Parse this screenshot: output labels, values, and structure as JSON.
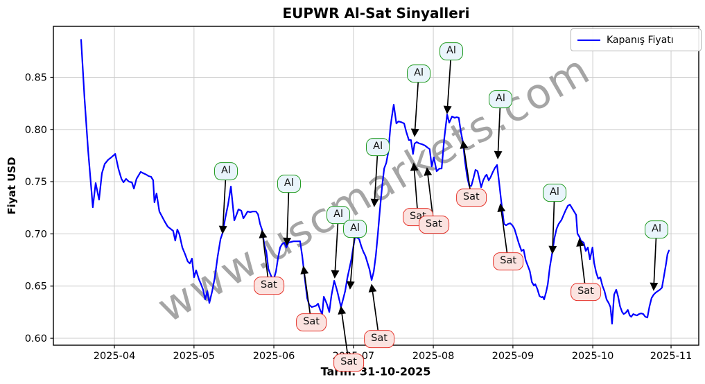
{
  "title": "EUPWR Al-Sat Sinyalleri",
  "watermark": "www.uscmarkets.com",
  "legend": {
    "label": "Kapanış Fiyatı"
  },
  "axes": {
    "x_label": "Tarih: 31-10-2025",
    "y_label": "Fiyat USD",
    "x_ticks": [
      {
        "label": "2025-04",
        "t": 12.8
      },
      {
        "label": "2025-05",
        "t": 43.4
      },
      {
        "label": "2025-06",
        "t": 74.1
      },
      {
        "label": "2025-07",
        "t": 104.7
      },
      {
        "label": "2025-08",
        "t": 135.4
      },
      {
        "label": "2025-09",
        "t": 166.0
      },
      {
        "label": "2025-10",
        "t": 196.7
      },
      {
        "label": "2025-11",
        "t": 226.8
      }
    ],
    "y_ticks": [
      {
        "label": "0.60",
        "v": 0.6
      },
      {
        "label": "0.65",
        "v": 0.65
      },
      {
        "label": "0.70",
        "v": 0.7
      },
      {
        "label": "0.75",
        "v": 0.75
      },
      {
        "label": "0.80",
        "v": 0.8
      },
      {
        "label": "0.85",
        "v": 0.85
      }
    ]
  },
  "colors": {
    "line": "#0000ff",
    "grid": "#cccccc",
    "spine": "#000000",
    "arrow": "#000000",
    "buy_border": "#1f9a1f",
    "buy_fill": "#e9f4fb",
    "sell_border": "#e5332a",
    "sell_fill": "#fbe3e0",
    "watermark": "#8c8c8c"
  },
  "chart_data": {
    "type": "line",
    "title": "EUPWR Al-Sat Sinyalleri",
    "xlabel": "Tarih: 31-10-2025",
    "ylabel": "Fiyat USD",
    "series_name": "Kapanış Fiyatı",
    "x_unit": "days since 2025-03-19",
    "start_date": "2025-03-19",
    "end_date": "2025-10-31",
    "xlim_days": [
      -10.66,
      237.45
    ],
    "ylim": [
      0.5934,
      0.8988
    ],
    "grid": true,
    "legend_position": "upper right",
    "points": [
      [
        0,
        0.886
      ],
      [
        1.3,
        0.83
      ],
      [
        2.7,
        0.78
      ],
      [
        4.5,
        0.7255
      ],
      [
        5.6,
        0.7487
      ],
      [
        6.9,
        0.7328
      ],
      [
        8,
        0.758
      ],
      [
        9.1,
        0.767
      ],
      [
        10.4,
        0.771
      ],
      [
        11.7,
        0.7735
      ],
      [
        13.1,
        0.7766
      ],
      [
        14.4,
        0.762
      ],
      [
        15.5,
        0.7527
      ],
      [
        16.3,
        0.7494
      ],
      [
        17.3,
        0.7527
      ],
      [
        18.4,
        0.75
      ],
      [
        19.5,
        0.7494
      ],
      [
        20.3,
        0.7434
      ],
      [
        21.3,
        0.7527
      ],
      [
        22.1,
        0.756
      ],
      [
        22.9,
        0.7594
      ],
      [
        24,
        0.758
      ],
      [
        25.1,
        0.7567
      ],
      [
        25.9,
        0.7554
      ],
      [
        26.9,
        0.7547
      ],
      [
        27.7,
        0.7514
      ],
      [
        28.2,
        0.7302
      ],
      [
        29,
        0.7387
      ],
      [
        30.1,
        0.7215
      ],
      [
        31.2,
        0.7162
      ],
      [
        32.2,
        0.7116
      ],
      [
        33.3,
        0.7069
      ],
      [
        34.4,
        0.7049
      ],
      [
        35.4,
        0.7029
      ],
      [
        36.2,
        0.6936
      ],
      [
        37,
        0.7042
      ],
      [
        37.8,
        0.6996
      ],
      [
        38.9,
        0.687
      ],
      [
        40,
        0.6804
      ],
      [
        41,
        0.6737
      ],
      [
        41.8,
        0.6717
      ],
      [
        42.6,
        0.6764
      ],
      [
        43.4,
        0.6584
      ],
      [
        44.2,
        0.6651
      ],
      [
        45.3,
        0.6564
      ],
      [
        46.1,
        0.6518
      ],
      [
        46.9,
        0.6465
      ],
      [
        47.7,
        0.6372
      ],
      [
        48.5,
        0.6452
      ],
      [
        49.3,
        0.6339
      ],
      [
        50.4,
        0.6452
      ],
      [
        51.4,
        0.6584
      ],
      [
        52.5,
        0.6784
      ],
      [
        53.6,
        0.695
      ],
      [
        54.4,
        0.7009
      ],
      [
        55.4,
        0.7149
      ],
      [
        56.5,
        0.7281
      ],
      [
        57.6,
        0.7454
      ],
      [
        58.9,
        0.7129
      ],
      [
        59.7,
        0.718
      ],
      [
        60.5,
        0.7235
      ],
      [
        61.6,
        0.7222
      ],
      [
        62.4,
        0.7149
      ],
      [
        63.2,
        0.718
      ],
      [
        64,
        0.7215
      ],
      [
        65,
        0.7208
      ],
      [
        66.1,
        0.7215
      ],
      [
        67.2,
        0.7215
      ],
      [
        68,
        0.7188
      ],
      [
        68.8,
        0.7095
      ],
      [
        69.6,
        0.7036
      ],
      [
        70.4,
        0.69
      ],
      [
        71.2,
        0.683
      ],
      [
        72,
        0.6664
      ],
      [
        72.7,
        0.6617
      ],
      [
        73.3,
        0.6584
      ],
      [
        74.1,
        0.657
      ],
      [
        74.9,
        0.664
      ],
      [
        75.7,
        0.677
      ],
      [
        76.5,
        0.687
      ],
      [
        77.3,
        0.6903
      ],
      [
        78.1,
        0.6916
      ],
      [
        78.9,
        0.6869
      ],
      [
        79.7,
        0.6916
      ],
      [
        80.7,
        0.6923
      ],
      [
        81.8,
        0.6929
      ],
      [
        82.9,
        0.6929
      ],
      [
        84.2,
        0.693
      ],
      [
        85,
        0.6787
      ],
      [
        86.1,
        0.6551
      ],
      [
        86.9,
        0.6385
      ],
      [
        87.7,
        0.632
      ],
      [
        88.7,
        0.6299
      ],
      [
        89.5,
        0.6305
      ],
      [
        90.3,
        0.6312
      ],
      [
        91.1,
        0.6332
      ],
      [
        91.9,
        0.6272
      ],
      [
        92.7,
        0.6232
      ],
      [
        93.3,
        0.6398
      ],
      [
        94.1,
        0.6352
      ],
      [
        94.6,
        0.6319
      ],
      [
        95.4,
        0.6252
      ],
      [
        96.2,
        0.6405
      ],
      [
        97.3,
        0.6551
      ],
      [
        98.1,
        0.6485
      ],
      [
        98.6,
        0.6438
      ],
      [
        99.4,
        0.6352
      ],
      [
        99.9,
        0.6299
      ],
      [
        100.7,
        0.6373
      ],
      [
        101.5,
        0.6452
      ],
      [
        102.3,
        0.6572
      ],
      [
        103.1,
        0.6664
      ],
      [
        103.9,
        0.6757
      ],
      [
        104.7,
        0.6883
      ],
      [
        105.3,
        0.6969
      ],
      [
        106.1,
        0.6963
      ],
      [
        106.9,
        0.695
      ],
      [
        107.7,
        0.6883
      ],
      [
        108.5,
        0.683
      ],
      [
        109.3,
        0.679
      ],
      [
        110.1,
        0.6724
      ],
      [
        110.9,
        0.6658
      ],
      [
        111.7,
        0.6558
      ],
      [
        112.5,
        0.6638
      ],
      [
        113.3,
        0.679
      ],
      [
        114.1,
        0.7
      ],
      [
        114.9,
        0.7235
      ],
      [
        115.7,
        0.7447
      ],
      [
        116.5,
        0.7627
      ],
      [
        117.3,
        0.768
      ],
      [
        118.1,
        0.7786
      ],
      [
        118.9,
        0.8025
      ],
      [
        119.7,
        0.8164
      ],
      [
        120.2,
        0.8237
      ],
      [
        121.2,
        0.8058
      ],
      [
        122,
        0.8078
      ],
      [
        123.1,
        0.807
      ],
      [
        124.2,
        0.8058
      ],
      [
        125,
        0.7979
      ],
      [
        126,
        0.7899
      ],
      [
        126.8,
        0.7899
      ],
      [
        127.6,
        0.7766
      ],
      [
        128.2,
        0.7865
      ],
      [
        129,
        0.7879
      ],
      [
        130,
        0.7866
      ],
      [
        131.1,
        0.7859
      ],
      [
        132.2,
        0.7846
      ],
      [
        133.2,
        0.7826
      ],
      [
        134,
        0.7812
      ],
      [
        134.8,
        0.7646
      ],
      [
        135.6,
        0.7733
      ],
      [
        136.7,
        0.76
      ],
      [
        137.8,
        0.7626
      ],
      [
        138.6,
        0.7626
      ],
      [
        139.6,
        0.791
      ],
      [
        140.7,
        0.8144
      ],
      [
        141.5,
        0.8065
      ],
      [
        142.6,
        0.8125
      ],
      [
        143.6,
        0.8112
      ],
      [
        144.4,
        0.8118
      ],
      [
        145.2,
        0.8112
      ],
      [
        146,
        0.7979
      ],
      [
        146.8,
        0.7879
      ],
      [
        147.6,
        0.7693
      ],
      [
        148.4,
        0.7547
      ],
      [
        149.2,
        0.746
      ],
      [
        150,
        0.746
      ],
      [
        150.8,
        0.7533
      ],
      [
        151.6,
        0.7613
      ],
      [
        152.4,
        0.7601
      ],
      [
        153.2,
        0.7513
      ],
      [
        153.8,
        0.7447
      ],
      [
        154.6,
        0.7513
      ],
      [
        155.4,
        0.7554
      ],
      [
        155.9,
        0.7567
      ],
      [
        156.7,
        0.7513
      ],
      [
        157.5,
        0.7547
      ],
      [
        158.3,
        0.7593
      ],
      [
        159.1,
        0.7633
      ],
      [
        159.9,
        0.766
      ],
      [
        160.7,
        0.7494
      ],
      [
        161.5,
        0.7315
      ],
      [
        162.6,
        0.7095
      ],
      [
        163.4,
        0.7082
      ],
      [
        164.2,
        0.7095
      ],
      [
        165,
        0.7102
      ],
      [
        165.8,
        0.7082
      ],
      [
        166.6,
        0.7049
      ],
      [
        167.4,
        0.6983
      ],
      [
        168.2,
        0.6916
      ],
      [
        169.3,
        0.6837
      ],
      [
        170.1,
        0.685
      ],
      [
        170.9,
        0.675
      ],
      [
        171.7,
        0.6697
      ],
      [
        172.5,
        0.6644
      ],
      [
        173.3,
        0.6538
      ],
      [
        174.1,
        0.6505
      ],
      [
        174.6,
        0.6518
      ],
      [
        175.4,
        0.6472
      ],
      [
        176.2,
        0.6405
      ],
      [
        177,
        0.6392
      ],
      [
        177.5,
        0.6398
      ],
      [
        178,
        0.6372
      ],
      [
        178.8,
        0.6445
      ],
      [
        179.4,
        0.6518
      ],
      [
        180.2,
        0.6684
      ],
      [
        181.2,
        0.683
      ],
      [
        182,
        0.6963
      ],
      [
        182.8,
        0.7049
      ],
      [
        183.6,
        0.7095
      ],
      [
        184.7,
        0.7135
      ],
      [
        185.5,
        0.7182
      ],
      [
        186.3,
        0.7228
      ],
      [
        187.1,
        0.7268
      ],
      [
        187.9,
        0.7281
      ],
      [
        188.7,
        0.7248
      ],
      [
        189.5,
        0.7215
      ],
      [
        190.3,
        0.7182
      ],
      [
        190.8,
        0.7003
      ],
      [
        191.6,
        0.697
      ],
      [
        192.1,
        0.6936
      ],
      [
        193.2,
        0.6916
      ],
      [
        194,
        0.6837
      ],
      [
        194.8,
        0.687
      ],
      [
        195.6,
        0.6757
      ],
      [
        196.6,
        0.687
      ],
      [
        197.2,
        0.6724
      ],
      [
        198,
        0.6631
      ],
      [
        198.8,
        0.6571
      ],
      [
        199.6,
        0.6584
      ],
      [
        200.4,
        0.6505
      ],
      [
        201.2,
        0.6452
      ],
      [
        202,
        0.6372
      ],
      [
        202.8,
        0.6339
      ],
      [
        203.5,
        0.6299
      ],
      [
        204.1,
        0.614
      ],
      [
        204.9,
        0.6418
      ],
      [
        205.7,
        0.6465
      ],
      [
        206.4,
        0.6405
      ],
      [
        207.2,
        0.6305
      ],
      [
        208,
        0.6252
      ],
      [
        208.6,
        0.6232
      ],
      [
        209.4,
        0.6245
      ],
      [
        210.2,
        0.6272
      ],
      [
        210.9,
        0.6219
      ],
      [
        211.5,
        0.6206
      ],
      [
        212.3,
        0.6232
      ],
      [
        212.9,
        0.6225
      ],
      [
        213.7,
        0.6219
      ],
      [
        214.5,
        0.6232
      ],
      [
        215.3,
        0.6239
      ],
      [
        216.1,
        0.6232
      ],
      [
        216.9,
        0.6206
      ],
      [
        217.7,
        0.6199
      ],
      [
        218.5,
        0.6305
      ],
      [
        219.3,
        0.6385
      ],
      [
        220.1,
        0.6418
      ],
      [
        220.9,
        0.6438
      ],
      [
        221.7,
        0.6452
      ],
      [
        222.5,
        0.6465
      ],
      [
        223.3,
        0.6485
      ],
      [
        224.1,
        0.66
      ],
      [
        224.9,
        0.6717
      ],
      [
        225.4,
        0.6804
      ],
      [
        226,
        0.684
      ]
    ],
    "signals": [
      {
        "type": "buy",
        "label": "Al",
        "t": 55.7,
        "price": 0.76,
        "tip_t": 54.4,
        "tip_price": 0.7009
      },
      {
        "type": "buy",
        "label": "Al",
        "t": 79.9,
        "price": 0.748,
        "tip_t": 79.1,
        "tip_price": 0.6896
      },
      {
        "type": "buy",
        "label": "Al",
        "t": 98.9,
        "price": 0.7182,
        "tip_t": 97.5,
        "tip_price": 0.6584
      },
      {
        "type": "buy",
        "label": "Al",
        "t": 105.3,
        "price": 0.7049,
        "tip_t": 103.4,
        "tip_price": 0.6478
      },
      {
        "type": "buy",
        "label": "Al",
        "t": 114.1,
        "price": 0.7832,
        "tip_t": 112.7,
        "tip_price": 0.7268
      },
      {
        "type": "buy",
        "label": "Al",
        "t": 129.8,
        "price": 0.8536,
        "tip_t": 128.2,
        "tip_price": 0.7939
      },
      {
        "type": "buy",
        "label": "Al",
        "t": 142.3,
        "price": 0.8749,
        "tip_t": 140.7,
        "tip_price": 0.8158
      },
      {
        "type": "buy",
        "label": "Al",
        "t": 161.2,
        "price": 0.8291,
        "tip_t": 160.2,
        "tip_price": 0.7726
      },
      {
        "type": "buy",
        "label": "Al",
        "t": 182.0,
        "price": 0.7394,
        "tip_t": 181.2,
        "tip_price": 0.6817
      },
      {
        "type": "buy",
        "label": "Al",
        "t": 221.2,
        "price": 0.7042,
        "tip_t": 220.1,
        "tip_price": 0.6465
      },
      {
        "type": "sell",
        "label": "Sat",
        "t": 72.2,
        "price": 0.6505,
        "tip_t": 69.6,
        "tip_price": 0.7029
      },
      {
        "type": "sell",
        "label": "Sat",
        "t": 88.5,
        "price": 0.6153,
        "tip_t": 85.5,
        "tip_price": 0.6684
      },
      {
        "type": "sell",
        "label": "Sat",
        "t": 102.9,
        "price": 0.5767,
        "tip_t": 99.9,
        "tip_price": 0.6299
      },
      {
        "type": "sell",
        "label": "Sat",
        "t": 114.6,
        "price": 0.5993,
        "tip_t": 111.7,
        "tip_price": 0.6511
      },
      {
        "type": "sell",
        "label": "Sat",
        "t": 129.5,
        "price": 0.7162,
        "tip_t": 127.9,
        "tip_price": 0.7673
      },
      {
        "type": "sell",
        "label": "Sat",
        "t": 135.6,
        "price": 0.7089,
        "tip_t": 133.0,
        "tip_price": 0.7627
      },
      {
        "type": "sell",
        "label": "Sat",
        "t": 150.0,
        "price": 0.7348,
        "tip_t": 146.8,
        "tip_price": 0.7886
      },
      {
        "type": "sell",
        "label": "Sat",
        "t": 164.2,
        "price": 0.6737,
        "tip_t": 161.2,
        "tip_price": 0.7281
      },
      {
        "type": "sell",
        "label": "Sat",
        "t": 194.0,
        "price": 0.6445,
        "tip_t": 191.6,
        "tip_price": 0.6949
      }
    ]
  }
}
